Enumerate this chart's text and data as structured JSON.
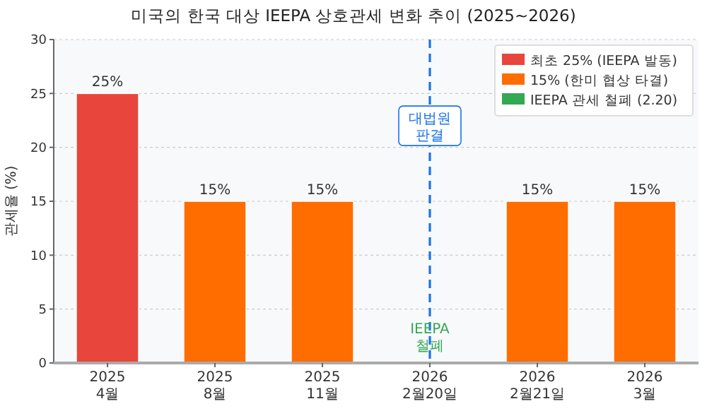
{
  "chart_data": {
    "type": "bar",
    "title": "미국의 한국 대상 IEEPA 상호관세 변화 추이 (2025~2026)",
    "ylabel": "관세율 (%)",
    "categories": [
      "2025\n4월",
      "2025\n8월",
      "2025\n11월",
      "2026\n2월20일",
      "2026\n2월21일",
      "2026\n3월"
    ],
    "series": [
      {
        "name": "최초 25% (IEEPA 발동)",
        "color": "#e8453c",
        "values": [
          25,
          null,
          null,
          null,
          null,
          null
        ],
        "value_labels": [
          "25%",
          null,
          null,
          null,
          null,
          null
        ]
      },
      {
        "name": "15% (한미 협상 타결)",
        "color": "#ff6d00",
        "values": [
          null,
          15,
          15,
          null,
          15,
          15
        ],
        "value_labels": [
          null,
          "15%",
          "15%",
          null,
          "15%",
          "15%"
        ]
      },
      {
        "name": "IEEPA 관세 철폐 (2.20)",
        "color": "#34a853",
        "values": [
          null,
          null,
          null,
          0,
          null,
          null
        ]
      }
    ],
    "ylim": [
      0,
      30
    ],
    "yticks": [
      0,
      5,
      10,
      15,
      20,
      25,
      30
    ],
    "grid": "y",
    "legend": "top right",
    "ref_lines": [
      {
        "axis": "x",
        "value": "2026\n2월20일",
        "color": "#1a73e8",
        "line_style": "dashed"
      }
    ],
    "annotations": [
      {
        "text": "대법원\n판결",
        "x": "2026\n2월20일",
        "y": 22
      },
      {
        "text": "IEEPA\n철폐",
        "x": "2026\n2월20일",
        "y": 2.5
      }
    ]
  }
}
